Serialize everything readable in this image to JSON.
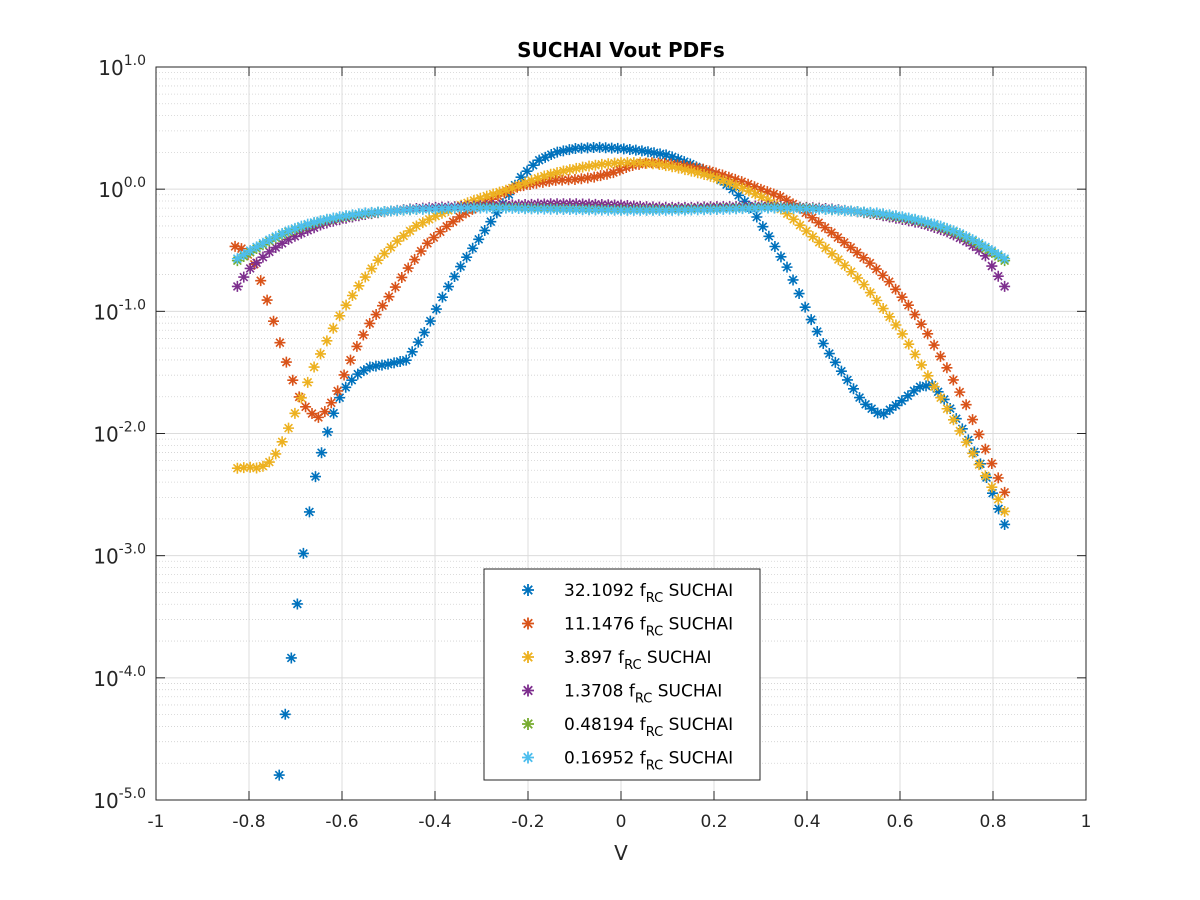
{
  "chart_data": {
    "type": "scatter",
    "title": "SUCHAI Vout PDFs",
    "xlabel": "V",
    "ylabel": "",
    "xlim": [
      -1,
      1
    ],
    "ylim": [
      1e-05,
      10
    ],
    "yscale": "log",
    "grid": true,
    "minor_grid": true,
    "marker": "*",
    "x_ticks": [
      -1,
      -0.8,
      -0.6,
      -0.4,
      -0.2,
      0,
      0.2,
      0.4,
      0.6,
      0.8,
      1
    ],
    "x_tick_labels": [
      "-1",
      "-0.8",
      "-0.6",
      "-0.4",
      "-0.2",
      "0",
      "0.2",
      "0.4",
      "0.6",
      "0.8",
      "1"
    ],
    "y_ticks": [
      {
        "value": 10,
        "base": "10",
        "exp": "1.0"
      },
      {
        "value": 1,
        "base": "10",
        "exp": "0.0"
      },
      {
        "value": 0.1,
        "base": "10",
        "exp": "-1.0"
      },
      {
        "value": 0.01,
        "base": "10",
        "exp": "-2.0"
      },
      {
        "value": 0.001,
        "base": "10",
        "exp": "-3.0"
      },
      {
        "value": 0.0001,
        "base": "10",
        "exp": "-4.0"
      },
      {
        "value": 1e-05,
        "base": "10",
        "exp": "-5.0"
      }
    ],
    "legend_position": "bottom-center",
    "series": [
      {
        "name": "32.1092 f_RC SUCHAI",
        "legend": {
          "prefix": "32.1092 f",
          "sub": "RC",
          "suffix": " SUCHAI"
        },
        "color": "#0072bd",
        "knots": [
          [
            -0.735,
            1.6e-05
          ],
          [
            -0.72,
            6e-05
          ],
          [
            -0.7,
            0.0003
          ],
          [
            -0.68,
            0.0013
          ],
          [
            -0.66,
            0.004
          ],
          [
            -0.64,
            0.008
          ],
          [
            -0.62,
            0.014
          ],
          [
            -0.6,
            0.022
          ],
          [
            -0.57,
            0.03
          ],
          [
            -0.54,
            0.035
          ],
          [
            -0.5,
            0.037
          ],
          [
            -0.46,
            0.04
          ],
          [
            -0.42,
            0.07
          ],
          [
            -0.38,
            0.14
          ],
          [
            -0.34,
            0.25
          ],
          [
            -0.3,
            0.42
          ],
          [
            -0.26,
            0.7
          ],
          [
            -0.22,
            1.2
          ],
          [
            -0.18,
            1.7
          ],
          [
            -0.14,
            2.0
          ],
          [
            -0.1,
            2.15
          ],
          [
            -0.05,
            2.2
          ],
          [
            0,
            2.15
          ],
          [
            0.05,
            2.05
          ],
          [
            0.1,
            1.9
          ],
          [
            0.15,
            1.6
          ],
          [
            0.2,
            1.3
          ],
          [
            0.24,
            1.0
          ],
          [
            0.28,
            0.7
          ],
          [
            0.32,
            0.4
          ],
          [
            0.36,
            0.22
          ],
          [
            0.4,
            0.1
          ],
          [
            0.44,
            0.05
          ],
          [
            0.48,
            0.03
          ],
          [
            0.52,
            0.018
          ],
          [
            0.56,
            0.014
          ],
          [
            0.6,
            0.018
          ],
          [
            0.64,
            0.024
          ],
          [
            0.67,
            0.025
          ],
          [
            0.7,
            0.018
          ],
          [
            0.74,
            0.01
          ],
          [
            0.78,
            0.005
          ],
          [
            0.825,
            0.0018
          ]
        ]
      },
      {
        "name": "11.1476 f_RC SUCHAI",
        "legend": {
          "prefix": "11.1476 f",
          "sub": "RC",
          "suffix": " SUCHAI"
        },
        "color": "#d95319",
        "knots": [
          [
            -0.83,
            0.34
          ],
          [
            -0.81,
            0.32
          ],
          [
            -0.79,
            0.25
          ],
          [
            -0.77,
            0.16
          ],
          [
            -0.75,
            0.09
          ],
          [
            -0.73,
            0.05
          ],
          [
            -0.71,
            0.03
          ],
          [
            -0.69,
            0.019
          ],
          [
            -0.67,
            0.015
          ],
          [
            -0.65,
            0.0135
          ],
          [
            -0.63,
            0.016
          ],
          [
            -0.61,
            0.022
          ],
          [
            -0.59,
            0.034
          ],
          [
            -0.57,
            0.05
          ],
          [
            -0.54,
            0.08
          ],
          [
            -0.5,
            0.13
          ],
          [
            -0.46,
            0.22
          ],
          [
            -0.42,
            0.35
          ],
          [
            -0.38,
            0.48
          ],
          [
            -0.34,
            0.62
          ],
          [
            -0.3,
            0.75
          ],
          [
            -0.26,
            0.9
          ],
          [
            -0.22,
            1.05
          ],
          [
            -0.18,
            1.12
          ],
          [
            -0.14,
            1.18
          ],
          [
            -0.1,
            1.2
          ],
          [
            -0.06,
            1.25
          ],
          [
            -0.02,
            1.35
          ],
          [
            0.02,
            1.55
          ],
          [
            0.06,
            1.65
          ],
          [
            0.1,
            1.62
          ],
          [
            0.14,
            1.55
          ],
          [
            0.18,
            1.45
          ],
          [
            0.22,
            1.3
          ],
          [
            0.26,
            1.15
          ],
          [
            0.3,
            1.0
          ],
          [
            0.34,
            0.88
          ],
          [
            0.38,
            0.72
          ],
          [
            0.42,
            0.55
          ],
          [
            0.46,
            0.42
          ],
          [
            0.5,
            0.32
          ],
          [
            0.54,
            0.24
          ],
          [
            0.58,
            0.17
          ],
          [
            0.62,
            0.11
          ],
          [
            0.66,
            0.065
          ],
          [
            0.7,
            0.035
          ],
          [
            0.74,
            0.018
          ],
          [
            0.78,
            0.008
          ],
          [
            0.825,
            0.0033
          ]
        ]
      },
      {
        "name": "3.897 f_RC SUCHAI",
        "legend": {
          "prefix": "3.897 f",
          "sub": "RC",
          "suffix": " SUCHAI"
        },
        "color": "#edb120",
        "knots": [
          [
            -0.825,
            0.0052
          ],
          [
            -0.8,
            0.0053
          ],
          [
            -0.78,
            0.0052
          ],
          [
            -0.76,
            0.0056
          ],
          [
            -0.74,
            0.007
          ],
          [
            -0.72,
            0.01
          ],
          [
            -0.7,
            0.015
          ],
          [
            -0.68,
            0.023
          ],
          [
            -0.66,
            0.035
          ],
          [
            -0.63,
            0.06
          ],
          [
            -0.6,
            0.1
          ],
          [
            -0.56,
            0.17
          ],
          [
            -0.52,
            0.27
          ],
          [
            -0.48,
            0.38
          ],
          [
            -0.44,
            0.5
          ],
          [
            -0.4,
            0.6
          ],
          [
            -0.36,
            0.7
          ],
          [
            -0.32,
            0.8
          ],
          [
            -0.28,
            0.9
          ],
          [
            -0.24,
            1.0
          ],
          [
            -0.2,
            1.15
          ],
          [
            -0.16,
            1.3
          ],
          [
            -0.12,
            1.42
          ],
          [
            -0.08,
            1.52
          ],
          [
            -0.04,
            1.6
          ],
          [
            0,
            1.65
          ],
          [
            0.04,
            1.65
          ],
          [
            0.08,
            1.6
          ],
          [
            0.12,
            1.5
          ],
          [
            0.16,
            1.38
          ],
          [
            0.2,
            1.25
          ],
          [
            0.24,
            1.1
          ],
          [
            0.28,
            0.95
          ],
          [
            0.32,
            0.8
          ],
          [
            0.36,
            0.62
          ],
          [
            0.4,
            0.45
          ],
          [
            0.44,
            0.33
          ],
          [
            0.48,
            0.24
          ],
          [
            0.52,
            0.17
          ],
          [
            0.56,
            0.11
          ],
          [
            0.6,
            0.07
          ],
          [
            0.64,
            0.04
          ],
          [
            0.68,
            0.022
          ],
          [
            0.72,
            0.012
          ],
          [
            0.76,
            0.0065
          ],
          [
            0.8,
            0.0035
          ],
          [
            0.825,
            0.0023
          ]
        ]
      },
      {
        "name": "1.3708 f_RC SUCHAI",
        "legend": {
          "prefix": "1.3708 f",
          "sub": "RC",
          "suffix": " SUCHAI"
        },
        "color": "#7e2f8e",
        "knots": [
          [
            -0.825,
            0.16
          ],
          [
            -0.8,
            0.22
          ],
          [
            -0.76,
            0.3
          ],
          [
            -0.72,
            0.38
          ],
          [
            -0.68,
            0.45
          ],
          [
            -0.64,
            0.52
          ],
          [
            -0.6,
            0.57
          ],
          [
            -0.55,
            0.62
          ],
          [
            -0.5,
            0.66
          ],
          [
            -0.45,
            0.69
          ],
          [
            -0.4,
            0.71
          ],
          [
            -0.35,
            0.72
          ],
          [
            -0.3,
            0.73
          ],
          [
            -0.25,
            0.74
          ],
          [
            -0.2,
            0.75
          ],
          [
            -0.15,
            0.76
          ],
          [
            -0.1,
            0.76
          ],
          [
            -0.05,
            0.75
          ],
          [
            0,
            0.74
          ],
          [
            0.05,
            0.72
          ],
          [
            0.1,
            0.71
          ],
          [
            0.15,
            0.71
          ],
          [
            0.2,
            0.72
          ],
          [
            0.25,
            0.72
          ],
          [
            0.3,
            0.73
          ],
          [
            0.35,
            0.72
          ],
          [
            0.4,
            0.71
          ],
          [
            0.45,
            0.69
          ],
          [
            0.5,
            0.66
          ],
          [
            0.55,
            0.62
          ],
          [
            0.6,
            0.57
          ],
          [
            0.65,
            0.52
          ],
          [
            0.7,
            0.45
          ],
          [
            0.74,
            0.38
          ],
          [
            0.78,
            0.3
          ],
          [
            0.825,
            0.16
          ]
        ]
      },
      {
        "name": "0.48194 f_RC SUCHAI",
        "legend": {
          "prefix": "0.48194 f",
          "sub": "RC",
          "suffix": " SUCHAI"
        },
        "color": "#77ac30",
        "knots": [
          [
            -0.825,
            0.26
          ],
          [
            -0.8,
            0.3
          ],
          [
            -0.76,
            0.37
          ],
          [
            -0.72,
            0.44
          ],
          [
            -0.68,
            0.5
          ],
          [
            -0.64,
            0.55
          ],
          [
            -0.6,
            0.59
          ],
          [
            -0.55,
            0.63
          ],
          [
            -0.5,
            0.66
          ],
          [
            -0.45,
            0.68
          ],
          [
            -0.4,
            0.69
          ],
          [
            -0.35,
            0.7
          ],
          [
            -0.3,
            0.71
          ],
          [
            -0.25,
            0.71
          ],
          [
            -0.2,
            0.7
          ],
          [
            -0.1,
            0.69
          ],
          [
            0,
            0.68
          ],
          [
            0.1,
            0.68
          ],
          [
            0.2,
            0.69
          ],
          [
            0.25,
            0.7
          ],
          [
            0.3,
            0.71
          ],
          [
            0.35,
            0.71
          ],
          [
            0.4,
            0.7
          ],
          [
            0.45,
            0.68
          ],
          [
            0.5,
            0.66
          ],
          [
            0.55,
            0.63
          ],
          [
            0.6,
            0.59
          ],
          [
            0.64,
            0.55
          ],
          [
            0.68,
            0.5
          ],
          [
            0.72,
            0.44
          ],
          [
            0.76,
            0.37
          ],
          [
            0.8,
            0.3
          ],
          [
            0.825,
            0.26
          ]
        ]
      },
      {
        "name": "0.16952 f_RC SUCHAI",
        "legend": {
          "prefix": "0.16952 f",
          "sub": "RC",
          "suffix": " SUCHAI"
        },
        "color": "#4dbeee",
        "knots": [
          [
            -0.825,
            0.27
          ],
          [
            -0.8,
            0.31
          ],
          [
            -0.76,
            0.38
          ],
          [
            -0.72,
            0.45
          ],
          [
            -0.68,
            0.51
          ],
          [
            -0.64,
            0.56
          ],
          [
            -0.6,
            0.6
          ],
          [
            -0.55,
            0.64
          ],
          [
            -0.5,
            0.66
          ],
          [
            -0.45,
            0.68
          ],
          [
            -0.4,
            0.69
          ],
          [
            -0.35,
            0.7
          ],
          [
            -0.3,
            0.7
          ],
          [
            -0.25,
            0.7
          ],
          [
            -0.2,
            0.69
          ],
          [
            -0.1,
            0.68
          ],
          [
            0,
            0.67
          ],
          [
            0.1,
            0.67
          ],
          [
            0.2,
            0.68
          ],
          [
            0.25,
            0.69
          ],
          [
            0.3,
            0.7
          ],
          [
            0.35,
            0.7
          ],
          [
            0.4,
            0.69
          ],
          [
            0.45,
            0.68
          ],
          [
            0.5,
            0.66
          ],
          [
            0.55,
            0.64
          ],
          [
            0.6,
            0.6
          ],
          [
            0.64,
            0.56
          ],
          [
            0.68,
            0.51
          ],
          [
            0.72,
            0.45
          ],
          [
            0.76,
            0.38
          ],
          [
            0.8,
            0.31
          ],
          [
            0.825,
            0.27
          ]
        ]
      }
    ]
  }
}
